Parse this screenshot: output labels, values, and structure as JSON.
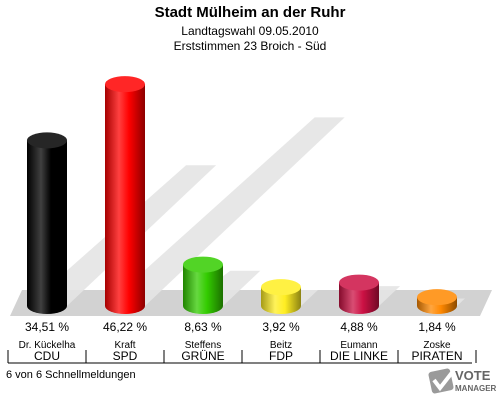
{
  "header": {
    "title": "Stadt Mülheim an der Ruhr",
    "subtitle1": "Landtagswahl 09.05.2010",
    "subtitle2": "Erststimmen 23 Broich - Süd"
  },
  "footer": {
    "status": "6 von 6 Schnellmeldungen"
  },
  "logo": {
    "word1": "VOTE",
    "word2": "MANAGER"
  },
  "colors": {
    "background": "#ffffff",
    "floor": "#d2d2d2",
    "shadow": "#e4e4e4"
  },
  "chart_data": {
    "type": "bar",
    "title": "Stadt Mülheim an der Ruhr",
    "subtitle": "Landtagswahl 09.05.2010 · Erststimmen 23 Broich - Süd",
    "unit": "%",
    "ylim": [
      0,
      50
    ],
    "bars": [
      {
        "candidate": "Dr. Kückelha",
        "party": "CDU",
        "value": 34.51,
        "label": "34,51 %",
        "color": "#000000"
      },
      {
        "candidate": "Kraft",
        "party": "SPD",
        "value": 46.22,
        "label": "46,22 %",
        "color": "#ff0000"
      },
      {
        "candidate": "Steffens",
        "party": "GRÜNE",
        "value": 8.63,
        "label": "8,63 %",
        "color": "#33cc00"
      },
      {
        "candidate": "Beitz",
        "party": "FDP",
        "value": 3.92,
        "label": "3,92 %",
        "color": "#ffee22"
      },
      {
        "candidate": "Eumann",
        "party": "DIE LINKE",
        "value": 4.88,
        "label": "4,88 %",
        "color": "#cc1144"
      },
      {
        "candidate": "Zoske",
        "party": "PIRATEN",
        "value": 1.84,
        "label": "1,84 %",
        "color": "#ff8800"
      }
    ]
  }
}
